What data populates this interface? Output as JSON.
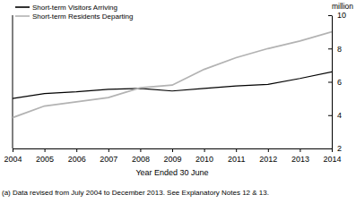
{
  "chart_data": {
    "type": "line",
    "x_label": "Year Ended 30 June",
    "y_label": "million",
    "note": "(a) Data revised from July 2004 to December 2013. See Explanatory Notes 12 & 13.",
    "x": [
      2004,
      2005,
      2006,
      2007,
      2008,
      2009,
      2010,
      2011,
      2012,
      2013,
      2014
    ],
    "xlim": [
      2004,
      2014
    ],
    "xticks": [
      2004,
      2005,
      2006,
      2007,
      2008,
      2009,
      2010,
      2011,
      2012,
      2013,
      2014
    ],
    "ylim": [
      2,
      10
    ],
    "yticks": [
      2,
      4,
      6,
      8,
      10
    ],
    "grid": false,
    "legend": "top-left",
    "series": [
      {
        "name": "Short-term Visitors Arriving",
        "color": "#000000",
        "values": [
          5.0,
          5.3,
          5.4,
          5.55,
          5.6,
          5.45,
          5.6,
          5.75,
          5.85,
          6.2,
          6.6
        ]
      },
      {
        "name": "Short-term Residents Departing",
        "color": "#b3b3b3",
        "values": [
          3.85,
          4.55,
          4.8,
          5.05,
          5.65,
          5.8,
          6.75,
          7.45,
          8.0,
          8.45,
          9.0
        ]
      }
    ]
  }
}
